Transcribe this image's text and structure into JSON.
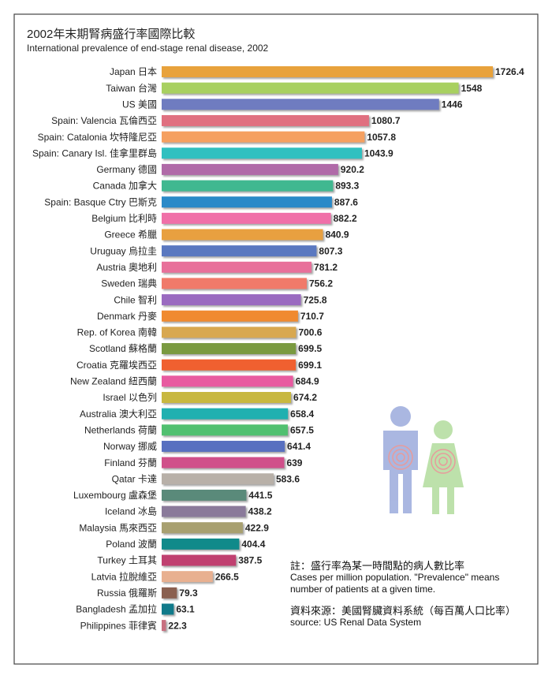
{
  "chart_data": {
    "type": "bar",
    "orientation": "horizontal",
    "title": "2002年末期腎病盛行率國際比較",
    "subtitle": "International prevalence of end-stage renal disease, 2002",
    "categories": [
      "Japan 日本",
      "Taiwan 台灣",
      "US 美國",
      "Spain: Valencia 瓦倫西亞",
      "Spain: Catalonia 坎特隆尼亞",
      "Spain: Canary Isl. 佳拿里群島",
      "Germany 德國",
      "Canada 加拿大",
      "Spain: Basque Ctry 巴斯克",
      "Belgium 比利時",
      "Greece 希臘",
      "Uruguay 烏拉圭",
      "Austria 奧地利",
      "Sweden 瑞典",
      "Chile 智利",
      "Denmark 丹麥",
      "Rep. of Korea 南韓",
      "Scotland 蘇格蘭",
      "Croatia 克羅埃西亞",
      "New Zealand 紐西蘭",
      "Israel 以色列",
      "Australia 澳大利亞",
      "Netherlands 荷蘭",
      "Norway 挪威",
      "Finland 芬蘭",
      "Qatar 卡達",
      "Luxembourg 盧森堡",
      "Iceland 冰島",
      "Malaysia 馬來西亞",
      "Poland 波蘭",
      "Turkey 土耳其",
      "Latvia 拉脫維亞",
      "Russia 俄羅斯",
      "Bangladesh 孟加拉",
      "Philippines 菲律賓"
    ],
    "values": [
      1726.4,
      1548,
      1446,
      1080.7,
      1057.8,
      1043.9,
      920.2,
      893.3,
      887.6,
      882.2,
      840.9,
      807.3,
      781.2,
      756.2,
      725.8,
      710.7,
      700.6,
      699.5,
      699.1,
      684.9,
      674.2,
      658.4,
      657.5,
      641.4,
      639,
      583.6,
      441.5,
      438.2,
      422.9,
      404.4,
      387.5,
      266.5,
      79.3,
      63.1,
      22.3
    ],
    "colors": [
      "#e8a23c",
      "#a8d060",
      "#6f7cc0",
      "#e07080",
      "#f5a060",
      "#30c0c0",
      "#b06aa8",
      "#40b890",
      "#2a8ac8",
      "#f070a8",
      "#e8a040",
      "#5a78c0",
      "#e8709a",
      "#f07a6a",
      "#9a6ac0",
      "#f08a30",
      "#d8a850",
      "#7a9a40",
      "#f06030",
      "#e85aa0",
      "#c8b840",
      "#20b0b0",
      "#50c070",
      "#5870c0",
      "#d0508a",
      "#b8b0a8",
      "#5a8a7a",
      "#8a7a9a",
      "#a8a070",
      "#108a8a",
      "#c04070",
      "#e8b090",
      "#8a6050",
      "#107a8a",
      "#c87080"
    ],
    "annotations": [
      "註：盛行率為某一時間點的病人數比率",
      "Cases per million population. \"Prevalence\" means number of patients at a given time.",
      "資料來源：美國腎臟資料系統（每百萬人口比率）",
      "source: US Renal Data System"
    ]
  }
}
